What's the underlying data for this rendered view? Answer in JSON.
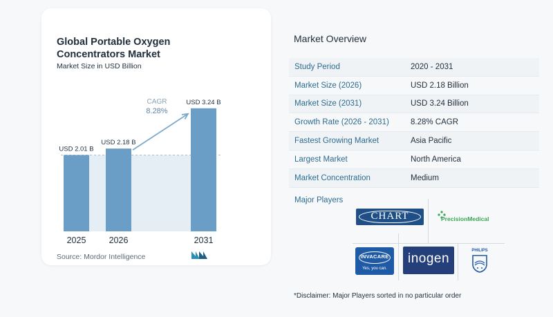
{
  "chart_data": {
    "type": "bar",
    "title": "Global Portable Oxygen Concentrators Market",
    "subtitle": "Market Size in USD Billion",
    "categories": [
      "2025",
      "2026",
      "2031"
    ],
    "values": [
      2.01,
      2.18,
      3.24
    ],
    "data_labels": [
      "USD 2.01 B",
      "USD 2.18 B",
      "USD 3.24 B"
    ],
    "annotation": {
      "label": "CAGR",
      "value": "8.28%"
    },
    "colors": {
      "bar": "#6a9ec6",
      "shade": "#e6eef5",
      "dashed": "#a9bfd0",
      "arrow": "#7aa9cc"
    }
  },
  "source": "Source:  Mordor Intelligence",
  "overview": {
    "title": "Market Overview",
    "rows": [
      {
        "label": "Study Period",
        "value": "2020 - 2031"
      },
      {
        "label": "Market Size (2026)",
        "value": "USD 2.18 Billion"
      },
      {
        "label": "Market Size (2031)",
        "value": "USD 3.24 Billion"
      },
      {
        "label": "Growth Rate (2026 - 2031)",
        "value": "8.28% CAGR"
      },
      {
        "label": "Fastest Growing Market",
        "value": "Asia Pacific"
      },
      {
        "label": "Largest Market",
        "value": "North America"
      },
      {
        "label": "Market Concentration",
        "value": "Medium"
      }
    ]
  },
  "players": {
    "title": "Major Players",
    "logos": {
      "chart": "CHART",
      "precision": "PrecisionMedical",
      "invacare": "INVACARE",
      "invacare_tag": "Yes, you can.",
      "inogen": "inogen",
      "philips": "PHILIPS"
    }
  },
  "disclaimer": "*Disclaimer: Major Players sorted in no particular order"
}
